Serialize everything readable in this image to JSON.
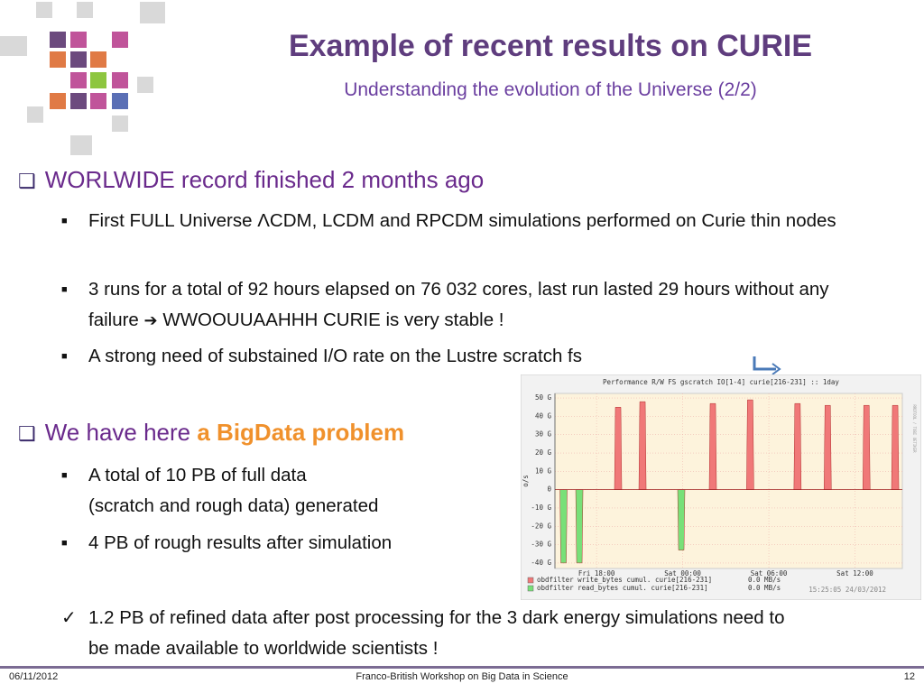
{
  "header": {
    "title": "Example of recent results on CURIE",
    "subtitle": "Understanding the evolution of the Universe (2/2)"
  },
  "sections": [
    {
      "heading": "WORLWIDE record finished 2 months ago",
      "items": [
        "First FULL Universe ΛCDM, LCDM and RPCDM simulations performed on Curie thin nodes",
        [
          "3 runs for a total of 92 hours elapsed on 76 032 cores, last run lasted 29 hours without any failure",
          "WWOOUUAAHHH CURIE is very stable !"
        ],
        "A strong need of substained I/O rate on the Lustre scratch fs"
      ]
    },
    {
      "heading": [
        "We have here ",
        "a BigData problem"
      ],
      "items": [
        [
          "A total of 10 PB of full data",
          "(scratch and rough data) generated"
        ],
        "4 PB of rough results after simulation"
      ]
    }
  ],
  "conclusion": "1.2 PB of refined data  after post processing for the 3 dark energy simulations need to be made available to worldwide scientists !",
  "chart_data": {
    "type": "bar",
    "title": "Performance R/W FS gscratch IO[1-4] curie[216-231] :: 1day",
    "y_label": "o/s",
    "side_note": "RRDTOOL / TOBI OETIKER",
    "timestamp": "15:25:05 24/03/2012",
    "xlim": [
      15.1,
      39.3
    ],
    "xticks": [
      {
        "value": 18,
        "label": "Fri 18:00"
      },
      {
        "value": 24,
        "label": "Sat 00:00"
      },
      {
        "value": 30,
        "label": "Sat 06:00"
      },
      {
        "value": 36,
        "label": "Sat 12:00"
      }
    ],
    "ylim": [
      -43,
      52.5
    ],
    "yticks": [
      {
        "value": 50,
        "label": "50 G"
      },
      {
        "value": 40,
        "label": "40 G"
      },
      {
        "value": 30,
        "label": "30 G"
      },
      {
        "value": 20,
        "label": "20 G"
      },
      {
        "value": 10,
        "label": "10 G"
      },
      0,
      {
        "value": -10,
        "label": "-10 G"
      },
      {
        "value": -20,
        "label": "-20 G"
      },
      {
        "value": -30,
        "label": "-30 G"
      },
      {
        "value": -40,
        "label": "-40 G"
      }
    ],
    "grid": true,
    "series": [
      {
        "name": "obdfilter write_bytes cumul. curie[216-231]",
        "rate": "0.0 MB/s",
        "color": "#f07878",
        "x": [
          19.5,
          21.2,
          26.1,
          28.7,
          32.0,
          34.1,
          36.8,
          38.8
        ],
        "values": [
          45,
          48,
          47,
          49,
          47,
          46,
          46,
          46
        ]
      },
      {
        "name": "obdfilter read_bytes cumul.  curie[216-231]",
        "rate": "0.0 MB/s",
        "color": "#78e078",
        "x": [
          15.7,
          16.8,
          23.9
        ],
        "values": [
          -40,
          -40,
          -33
        ]
      }
    ]
  },
  "footer": {
    "date": "06/11/2012",
    "event": "Franco-British Workshop on Big Data in Science",
    "page": "12"
  }
}
